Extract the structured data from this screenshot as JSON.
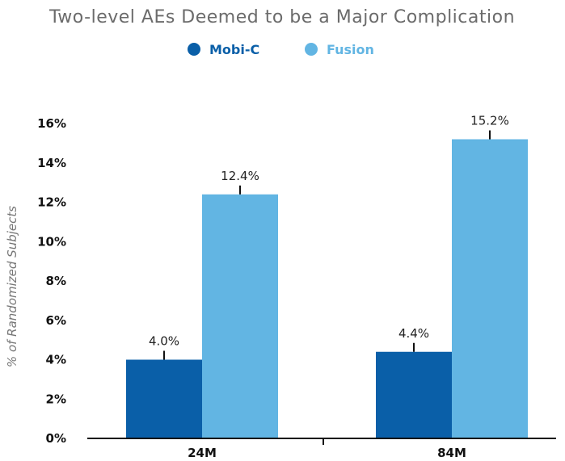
{
  "chart_data": {
    "type": "bar",
    "title": "Two-level AEs Deemed to be a Major Complication",
    "ylabel": "% of Randomized Subjects",
    "xlabel": "",
    "categories": [
      "24M",
      "84M"
    ],
    "series": [
      {
        "name": "Mobi-C",
        "color": "#0a5fa8",
        "values": [
          4.0,
          4.4
        ],
        "labels": [
          "4.0%",
          "4.4%"
        ]
      },
      {
        "name": "Fusion",
        "color": "#62b5e3",
        "values": [
          12.4,
          15.2
        ],
        "labels": [
          "12.4%",
          "15.2%"
        ]
      }
    ],
    "ylim": [
      0,
      16
    ],
    "yticks": [
      0,
      2,
      4,
      6,
      8,
      10,
      12,
      14,
      16
    ],
    "ytick_labels": [
      "0%",
      "2%",
      "4%",
      "6%",
      "8%",
      "10%",
      "12%",
      "14%",
      "16%"
    ],
    "legend_position": "top-center",
    "grid": false
  }
}
